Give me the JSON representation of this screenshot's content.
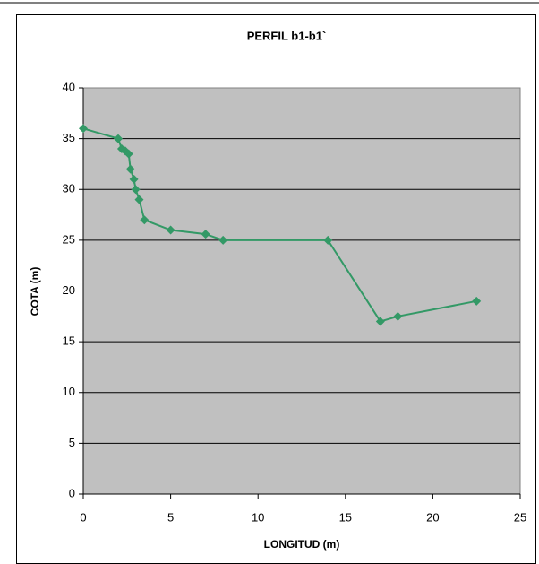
{
  "chart_data": {
    "type": "line",
    "title": "PERFIL b1-b1`",
    "x_label": "LONGITUD (m)",
    "y_label": "COTA (m)",
    "x": [
      0,
      2,
      2.2,
      2.4,
      2.6,
      2.7,
      2.9,
      3,
      3.2,
      3.5,
      5,
      7,
      8,
      14,
      17,
      18,
      22.5
    ],
    "values": [
      36,
      35,
      34,
      33.8,
      33.5,
      32,
      31,
      30,
      29,
      27,
      26,
      25.6,
      25,
      25,
      17,
      17.5,
      19
    ],
    "color": "#339966",
    "xlim": [
      0,
      25
    ],
    "xticks": [
      0,
      5,
      10,
      15,
      20,
      25
    ],
    "ylim": [
      0,
      40
    ],
    "yticks": [
      0,
      5,
      10,
      15,
      20,
      25,
      30,
      35,
      40
    ],
    "grid": true
  }
}
